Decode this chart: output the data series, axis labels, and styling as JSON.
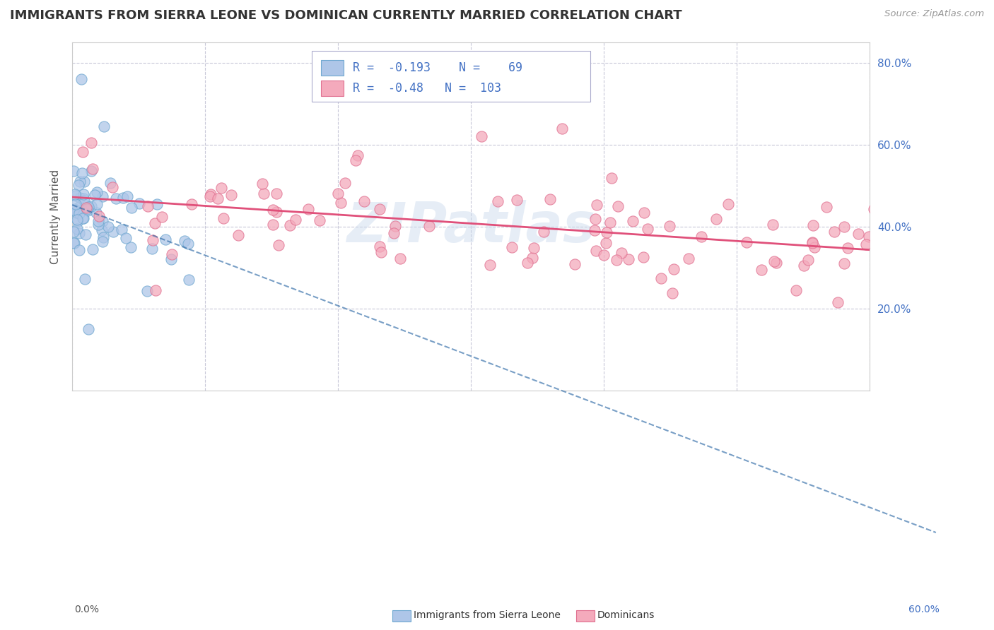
{
  "title": "IMMIGRANTS FROM SIERRA LEONE VS DOMINICAN CURRENTLY MARRIED CORRELATION CHART",
  "source_text": "Source: ZipAtlas.com",
  "ylabel": "Currently Married",
  "x_min": 0.0,
  "x_max": 0.6,
  "y_min": 0.0,
  "y_max": 0.85,
  "y_ticks": [
    0.2,
    0.4,
    0.6,
    0.8
  ],
  "y_tick_labels": [
    "20.0%",
    "40.0%",
    "60.0%",
    "80.0%"
  ],
  "sierra_leone_color": "#aec6e8",
  "sierra_leone_edge": "#6fa8d0",
  "dominican_color": "#f4aabc",
  "dominican_edge": "#e07090",
  "sierra_leone_line_color": "#2060a0",
  "dominican_line_color": "#e0507a",
  "R_sierra": -0.193,
  "N_sierra": 69,
  "R_dominican": -0.48,
  "N_dominican": 103,
  "watermark": "ZIPatlas",
  "grid_color": "#c8c8d8",
  "legend_sierra_color": "#aec6e8",
  "legend_sierra_edge": "#6fa8d0",
  "legend_dominican_color": "#f4aabc",
  "legend_dominican_edge": "#e07090",
  "label_color_blue": "#4472c4",
  "axis_color": "#888888",
  "title_color": "#333333"
}
